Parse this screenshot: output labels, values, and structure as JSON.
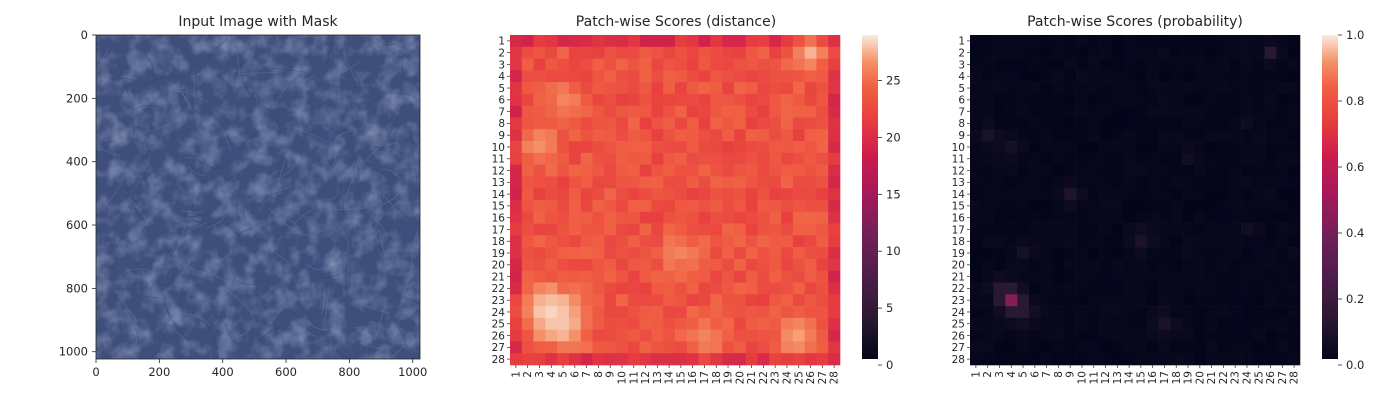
{
  "chart_data": [
    {
      "type": "image",
      "title": "Input Image with Mask",
      "xlim": [
        0,
        1023
      ],
      "ylim": [
        1023,
        0
      ],
      "xticks": [
        "0",
        "200",
        "400",
        "600",
        "800",
        "1000"
      ],
      "yticks": [
        "0",
        "200",
        "400",
        "600",
        "800",
        "1000"
      ],
      "image_colors": {
        "base": "#3f4f7c",
        "vein": "#6a7aa6",
        "shade": "#33416a"
      }
    },
    {
      "type": "heatmap",
      "title": "Patch-wise Scores (distance)",
      "rows": 28,
      "cols": 28,
      "xticks": [
        "1",
        "2",
        "3",
        "4",
        "5",
        "6",
        "7",
        "8",
        "9",
        "10",
        "11",
        "12",
        "13",
        "14",
        "15",
        "16",
        "17",
        "18",
        "19",
        "20",
        "21",
        "22",
        "23",
        "24",
        "25",
        "26",
        "27",
        "28"
      ],
      "yticks": [
        "1",
        "2",
        "3",
        "4",
        "5",
        "6",
        "7",
        "8",
        "9",
        "10",
        "11",
        "12",
        "13",
        "14",
        "15",
        "16",
        "17",
        "18",
        "19",
        "20",
        "21",
        "22",
        "23",
        "24",
        "25",
        "26",
        "27",
        "28"
      ],
      "colorbar": {
        "min": 0,
        "max": 29,
        "ticks": [
          "0",
          "5",
          "10",
          "15",
          "20",
          "25"
        ],
        "tick_values": [
          0,
          5,
          10,
          15,
          20,
          25
        ]
      },
      "base_value": 23,
      "border_value": 20,
      "hotspots": [
        {
          "row": 24,
          "col": 4,
          "value": 29,
          "spread": 1.6
        },
        {
          "row": 25,
          "col": 5,
          "value": 28,
          "spread": 1.4
        },
        {
          "row": 2,
          "col": 26,
          "value": 27.5,
          "spread": 1.1
        },
        {
          "row": 10,
          "col": 3,
          "value": 26.5,
          "spread": 1.2
        },
        {
          "row": 26,
          "col": 25,
          "value": 27,
          "spread": 1.3
        },
        {
          "row": 26,
          "col": 17,
          "value": 26,
          "spread": 1.3
        },
        {
          "row": 19,
          "col": 15,
          "value": 26,
          "spread": 1.3
        },
        {
          "row": 6,
          "col": 5,
          "value": 26,
          "spread": 1.2
        }
      ]
    },
    {
      "type": "heatmap",
      "title": "Patch-wise Scores (probability)",
      "rows": 28,
      "cols": 28,
      "xticks": [
        "1",
        "2",
        "3",
        "4",
        "5",
        "6",
        "7",
        "8",
        "9",
        "10",
        "11",
        "12",
        "13",
        "14",
        "15",
        "16",
        "17",
        "18",
        "19",
        "20",
        "21",
        "22",
        "23",
        "24",
        "25",
        "26",
        "27",
        "28"
      ],
      "yticks": [
        "1",
        "2",
        "3",
        "4",
        "5",
        "6",
        "7",
        "8",
        "9",
        "10",
        "11",
        "12",
        "13",
        "14",
        "15",
        "16",
        "17",
        "18",
        "19",
        "20",
        "21",
        "22",
        "23",
        "24",
        "25",
        "26",
        "27",
        "28"
      ],
      "colorbar": {
        "min": 0,
        "max": 1,
        "ticks": [
          "0.0",
          "0.2",
          "0.4",
          "0.6",
          "0.8",
          "1.0"
        ],
        "tick_values": [
          0,
          0.2,
          0.4,
          0.6,
          0.8,
          1.0
        ]
      },
      "base_value": 0.01,
      "hotspots": [
        {
          "row": 23,
          "col": 4,
          "value": 0.5,
          "spread": 0.6
        },
        {
          "row": 22,
          "col": 3,
          "value": 0.12,
          "spread": 0.6
        },
        {
          "row": 24,
          "col": 5,
          "value": 0.12,
          "spread": 0.7
        },
        {
          "row": 2,
          "col": 26,
          "value": 0.12,
          "spread": 0.5
        },
        {
          "row": 14,
          "col": 9,
          "value": 0.09,
          "spread": 0.6
        },
        {
          "row": 18,
          "col": 15,
          "value": 0.08,
          "spread": 0.7
        },
        {
          "row": 25,
          "col": 17,
          "value": 0.08,
          "spread": 0.7
        },
        {
          "row": 9,
          "col": 2,
          "value": 0.07,
          "spread": 0.6
        },
        {
          "row": 10,
          "col": 4,
          "value": 0.06,
          "spread": 0.7
        },
        {
          "row": 11,
          "col": 19,
          "value": 0.05,
          "spread": 0.5
        },
        {
          "row": 19,
          "col": 5,
          "value": 0.06,
          "spread": 0.6
        },
        {
          "row": 17,
          "col": 24,
          "value": 0.05,
          "spread": 0.5
        },
        {
          "row": 8,
          "col": 24,
          "value": 0.04,
          "spread": 0.5
        }
      ]
    }
  ]
}
